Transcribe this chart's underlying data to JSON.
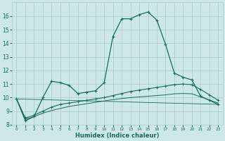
{
  "xlabel": "Humidex (Indice chaleur)",
  "background_color": "#cce8e8",
  "grid_color": "#aacccc",
  "line_color": "#1a6b5a",
  "xlim": [
    -0.5,
    23.5
  ],
  "ylim": [
    8,
    17
  ],
  "yticks": [
    8,
    9,
    10,
    11,
    12,
    13,
    14,
    15,
    16
  ],
  "xticks": [
    0,
    1,
    2,
    3,
    4,
    5,
    6,
    7,
    8,
    9,
    10,
    11,
    12,
    13,
    14,
    15,
    16,
    17,
    18,
    19,
    20,
    21,
    22,
    23
  ],
  "series1_x": [
    0,
    1,
    2,
    3,
    4,
    5,
    6,
    7,
    8,
    9,
    10,
    11,
    12,
    13,
    14,
    15,
    16,
    17,
    18,
    19,
    20,
    21,
    22,
    23
  ],
  "series1_y": [
    9.9,
    8.3,
    8.6,
    10.0,
    11.2,
    11.1,
    10.9,
    10.3,
    10.4,
    10.5,
    11.1,
    14.5,
    15.8,
    15.8,
    16.1,
    16.3,
    15.7,
    13.9,
    11.8,
    11.5,
    11.3,
    10.1,
    9.8,
    9.5
  ],
  "series2_x": [
    0,
    1,
    2,
    3,
    4,
    5,
    6,
    7,
    8,
    9,
    10,
    11,
    12,
    13,
    14,
    15,
    16,
    17,
    18,
    19,
    20,
    21,
    22,
    23
  ],
  "series2_y": [
    9.9,
    8.5,
    8.7,
    9.0,
    9.3,
    9.5,
    9.6,
    9.7,
    9.8,
    9.9,
    10.0,
    10.15,
    10.3,
    10.45,
    10.55,
    10.65,
    10.75,
    10.85,
    10.95,
    11.0,
    10.95,
    10.6,
    10.2,
    9.8
  ],
  "series3_x": [
    0,
    1,
    2,
    3,
    4,
    5,
    6,
    7,
    8,
    9,
    10,
    11,
    12,
    13,
    14,
    15,
    16,
    17,
    18,
    19,
    20,
    21,
    22,
    23
  ],
  "series3_y": [
    9.9,
    8.4,
    8.6,
    8.85,
    9.05,
    9.2,
    9.35,
    9.45,
    9.55,
    9.65,
    9.75,
    9.85,
    9.93,
    10.0,
    10.05,
    10.1,
    10.15,
    10.2,
    10.28,
    10.3,
    10.28,
    10.05,
    9.82,
    9.6
  ],
  "series4_x": [
    0,
    23
  ],
  "series4_y": [
    9.9,
    9.5
  ]
}
